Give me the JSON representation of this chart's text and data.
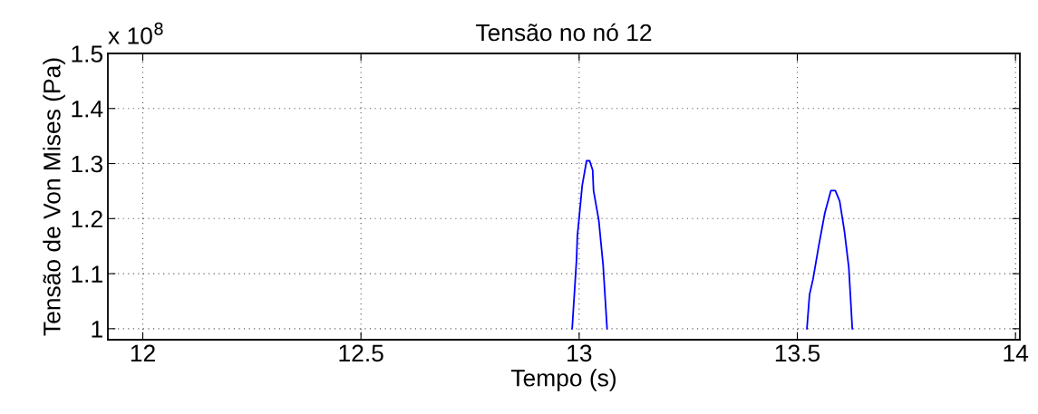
{
  "chart_data": {
    "type": "line",
    "title": "Tensão no nó 12",
    "xlabel": "Tempo (s)",
    "ylabel": "Tensão de Von Mises (Pa)",
    "annotations": [
      "x 10$^{8}$"
    ],
    "series": [
      {
        "color": "#0000ff",
        "x": [
          12.984,
          12.994,
          12.996,
          13.007,
          13.017,
          13.024,
          13.031,
          13.033,
          13.045,
          13.055,
          13.064,
          13.3,
          13.522,
          13.528,
          13.536,
          13.549,
          13.563,
          13.577,
          13.587,
          13.597,
          13.608,
          13.618,
          13.626
        ],
        "values": [
          1.0,
          1.125,
          1.169,
          1.26,
          1.305,
          1.305,
          1.288,
          1.251,
          1.197,
          1.115,
          1.0,
          null,
          1.0,
          1.062,
          1.09,
          1.15,
          1.21,
          1.251,
          1.251,
          1.232,
          1.177,
          1.111,
          1.0
        ]
      }
    ],
    "xlim": [
      11.92,
      14.01
    ],
    "xticks": [
      12,
      12.5,
      13,
      13.5,
      14
    ],
    "ylim": [
      0.98,
      1.5
    ],
    "yticks": [
      1,
      1.1,
      1.2,
      1.3,
      1.4,
      1.5
    ],
    "grid": true,
    "line_style": "solid",
    "marker": "none",
    "legend": false
  }
}
